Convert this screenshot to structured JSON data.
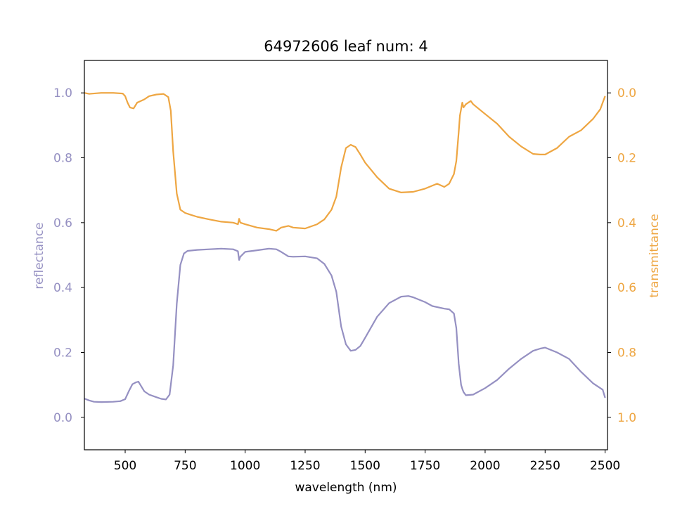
{
  "chart_data": {
    "type": "line",
    "title": "64972606 leaf num: 4",
    "xlabel": "wavelength (nm)",
    "ylabel_left": "reflectance",
    "ylabel_right": "transmittance",
    "xlim": [
      330,
      2510
    ],
    "ylim_left": [
      -0.1,
      1.1
    ],
    "ylim_right": [
      1.1,
      -0.1
    ],
    "x_ticks": [
      500,
      750,
      1000,
      1250,
      1500,
      1750,
      2000,
      2250,
      2500
    ],
    "y_ticks_left": [
      0.0,
      0.2,
      0.4,
      0.6,
      0.8,
      1.0
    ],
    "y_ticks_right": [
      0.0,
      0.2,
      0.4,
      0.6,
      0.8,
      1.0
    ],
    "grid": false,
    "colors": {
      "reflectance": "#9590c2",
      "transmittance": "#eea642"
    },
    "series": [
      {
        "axis": "left",
        "x": [
          330,
          350,
          370,
          400,
          450,
          480,
          500,
          515,
          530,
          545,
          555,
          565,
          580,
          600,
          630,
          650,
          670,
          685,
          700,
          715,
          730,
          745,
          760,
          800,
          850,
          900,
          950,
          970,
          975,
          980,
          1000,
          1050,
          1100,
          1130,
          1150,
          1180,
          1200,
          1250,
          1300,
          1330,
          1360,
          1380,
          1400,
          1420,
          1440,
          1460,
          1480,
          1500,
          1550,
          1600,
          1650,
          1680,
          1700,
          1750,
          1780,
          1830,
          1850,
          1870,
          1880,
          1890,
          1900,
          1905,
          1910,
          1920,
          1950,
          2000,
          2050,
          2100,
          2150,
          2200,
          2230,
          2250,
          2300,
          2350,
          2400,
          2450,
          2490,
          2500
        ],
        "y": [
          0.058,
          0.052,
          0.048,
          0.047,
          0.048,
          0.05,
          0.056,
          0.08,
          0.102,
          0.108,
          0.11,
          0.098,
          0.08,
          0.07,
          0.062,
          0.057,
          0.055,
          0.07,
          0.16,
          0.35,
          0.47,
          0.505,
          0.513,
          0.516,
          0.518,
          0.52,
          0.518,
          0.512,
          0.485,
          0.495,
          0.51,
          0.515,
          0.52,
          0.518,
          0.51,
          0.496,
          0.495,
          0.496,
          0.49,
          0.473,
          0.437,
          0.387,
          0.28,
          0.225,
          0.205,
          0.208,
          0.22,
          0.245,
          0.31,
          0.352,
          0.372,
          0.374,
          0.37,
          0.355,
          0.343,
          0.335,
          0.333,
          0.32,
          0.275,
          0.165,
          0.1,
          0.088,
          0.078,
          0.068,
          0.07,
          0.09,
          0.115,
          0.15,
          0.18,
          0.205,
          0.212,
          0.215,
          0.2,
          0.18,
          0.14,
          0.105,
          0.085,
          0.06
        ]
      },
      {
        "axis": "right",
        "x": [
          330,
          350,
          400,
          450,
          490,
          500,
          510,
          520,
          535,
          550,
          565,
          580,
          600,
          630,
          660,
          680,
          690,
          700,
          715,
          730,
          750,
          770,
          800,
          850,
          900,
          950,
          970,
          975,
          980,
          1000,
          1050,
          1100,
          1130,
          1150,
          1180,
          1200,
          1250,
          1300,
          1330,
          1360,
          1380,
          1400,
          1420,
          1440,
          1460,
          1480,
          1500,
          1550,
          1600,
          1650,
          1700,
          1750,
          1800,
          1830,
          1850,
          1870,
          1880,
          1890,
          1895,
          1900,
          1905,
          1910,
          1920,
          1940,
          1950,
          2000,
          2050,
          2100,
          2150,
          2200,
          2230,
          2250,
          2300,
          2350,
          2400,
          2450,
          2480,
          2500
        ],
        "y": [
          0.0,
          0.003,
          0.0,
          0.0,
          0.002,
          0.01,
          0.03,
          0.045,
          0.048,
          0.03,
          0.025,
          0.02,
          0.01,
          0.005,
          0.003,
          0.013,
          0.055,
          0.18,
          0.31,
          0.36,
          0.37,
          0.375,
          0.382,
          0.39,
          0.397,
          0.4,
          0.405,
          0.388,
          0.4,
          0.405,
          0.415,
          0.42,
          0.425,
          0.415,
          0.41,
          0.415,
          0.418,
          0.405,
          0.39,
          0.36,
          0.32,
          0.23,
          0.17,
          0.16,
          0.167,
          0.19,
          0.215,
          0.26,
          0.295,
          0.307,
          0.305,
          0.295,
          0.28,
          0.29,
          0.28,
          0.25,
          0.21,
          0.12,
          0.07,
          0.05,
          0.03,
          0.045,
          0.035,
          0.025,
          0.035,
          0.065,
          0.095,
          0.135,
          0.165,
          0.188,
          0.19,
          0.19,
          0.17,
          0.135,
          0.115,
          0.08,
          0.05,
          0.01
        ]
      }
    ]
  }
}
